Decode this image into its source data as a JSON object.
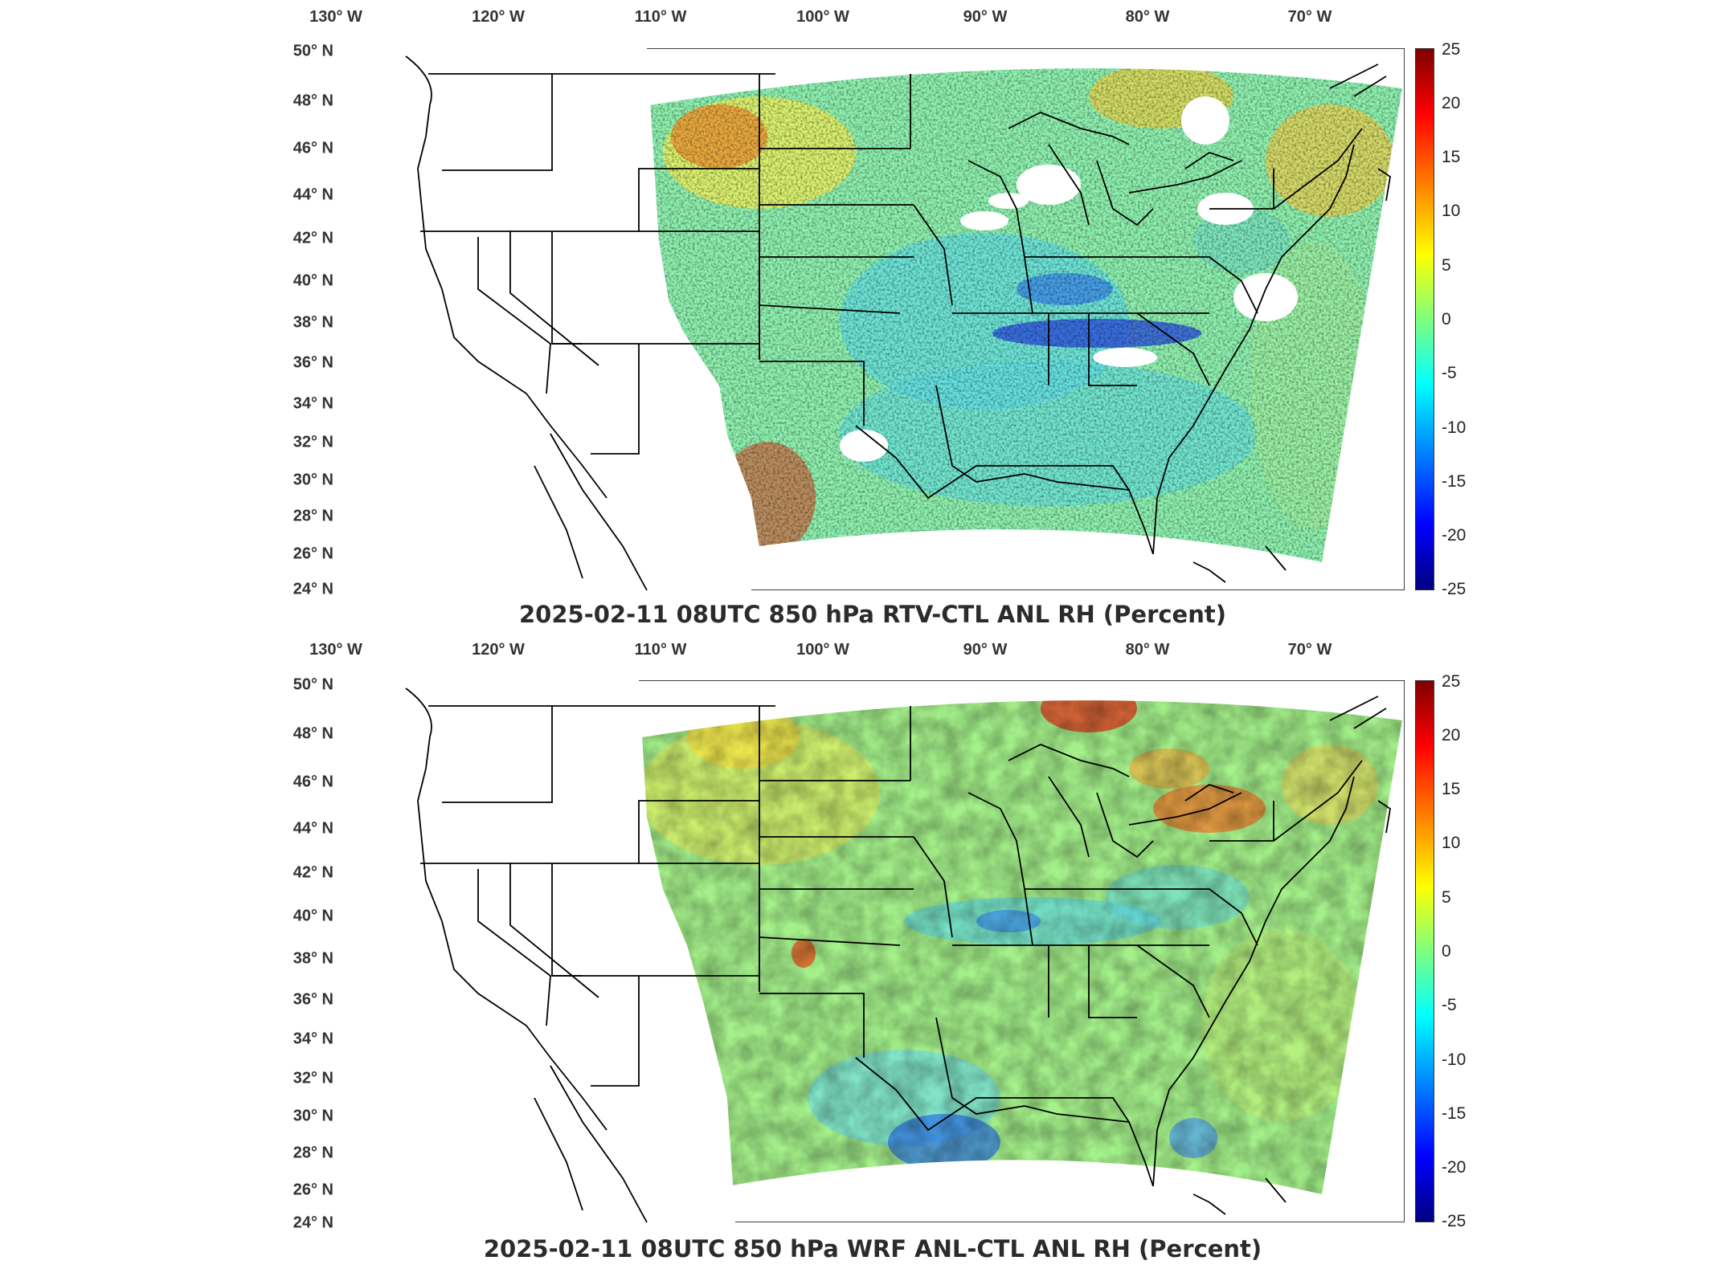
{
  "panels": [
    {
      "id": "top",
      "title": "2025-02-11 08UTC 850 hPa RTV-CTL ANL RH (Percent)",
      "lon_labels": [
        "130° W",
        "120° W",
        "110° W",
        "100° W",
        "90° W",
        "80° W",
        "70° W"
      ],
      "lat_labels": [
        "50° N",
        "48° N",
        "46° N",
        "44° N",
        "42° N",
        "40° N",
        "38° N",
        "36° N",
        "34° N",
        "32° N",
        "30° N",
        "28° N",
        "26° N",
        "24° N"
      ],
      "colorbar_ticks": [
        "25",
        "20",
        "15",
        "10",
        "5",
        "0",
        "-5",
        "-10",
        "-15",
        "-20",
        "-25"
      ]
    },
    {
      "id": "bottom",
      "title": "2025-02-11 08UTC 850 hPa WRF ANL-CTL ANL RH (Percent)",
      "lon_labels": [
        "130° W",
        "120° W",
        "110° W",
        "100° W",
        "90° W",
        "80° W",
        "70° W"
      ],
      "lat_labels": [
        "50° N",
        "48° N",
        "46° N",
        "44° N",
        "42° N",
        "40° N",
        "38° N",
        "36° N",
        "34° N",
        "32° N",
        "30° N",
        "28° N",
        "26° N",
        "24° N"
      ],
      "colorbar_ticks": [
        "25",
        "20",
        "15",
        "10",
        "5",
        "0",
        "-5",
        "-10",
        "-15",
        "-20",
        "-25"
      ]
    }
  ],
  "colormap": {
    "name": "jet",
    "range": [
      -25,
      25
    ],
    "colors": [
      "#00007f",
      "#0000ff",
      "#007fff",
      "#00ffff",
      "#7fff7f",
      "#ffff00",
      "#ff7f00",
      "#ff0000",
      "#7f0000"
    ]
  }
}
